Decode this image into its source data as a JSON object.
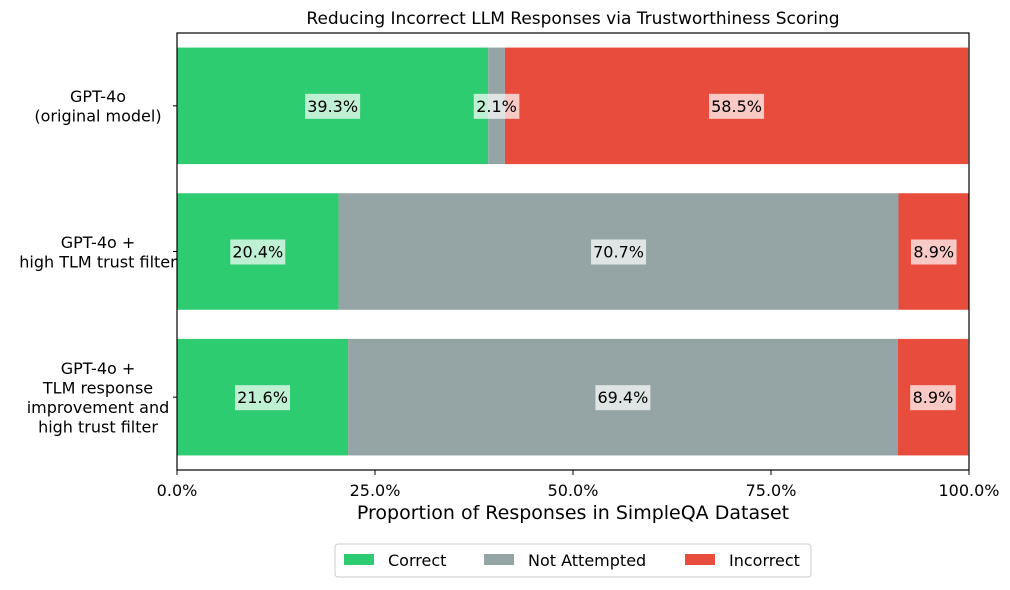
{
  "chart_data": {
    "type": "bar",
    "orientation": "horizontal",
    "stacked": true,
    "title": "Reducing Incorrect LLM Responses via Trustworthiness Scoring",
    "xlabel": "Proportion of Responses in SimpleQA Dataset",
    "ylabel": "",
    "xlim": [
      0,
      100
    ],
    "x_ticks": [
      "0.0%",
      "25.0%",
      "50.0%",
      "75.0%",
      "100.0%"
    ],
    "x_tick_values": [
      0,
      25,
      50,
      75,
      100
    ],
    "grid": false,
    "legend_position": "bottom-center",
    "categories": [
      [
        "GPT-4o",
        "(original model)"
      ],
      [
        "GPT-4o +",
        "high TLM trust filter"
      ],
      [
        "GPT-4o +",
        "TLM response",
        "improvement and",
        "high trust filter"
      ]
    ],
    "series": [
      {
        "name": "Correct",
        "color": "#2ecc71",
        "values": [
          39.3,
          20.4,
          21.6
        ],
        "labels": [
          "39.3%",
          "20.4%",
          "21.6%"
        ]
      },
      {
        "name": "Not Attempted",
        "color": "#95a5a6",
        "values": [
          2.1,
          70.7,
          69.4
        ],
        "labels": [
          "2.1%",
          "70.7%",
          "69.4%"
        ]
      },
      {
        "name": "Incorrect",
        "color": "#e74c3c",
        "values": [
          58.5,
          8.9,
          8.9
        ],
        "labels": [
          "58.5%",
          "8.9%",
          "8.9%"
        ]
      }
    ]
  }
}
